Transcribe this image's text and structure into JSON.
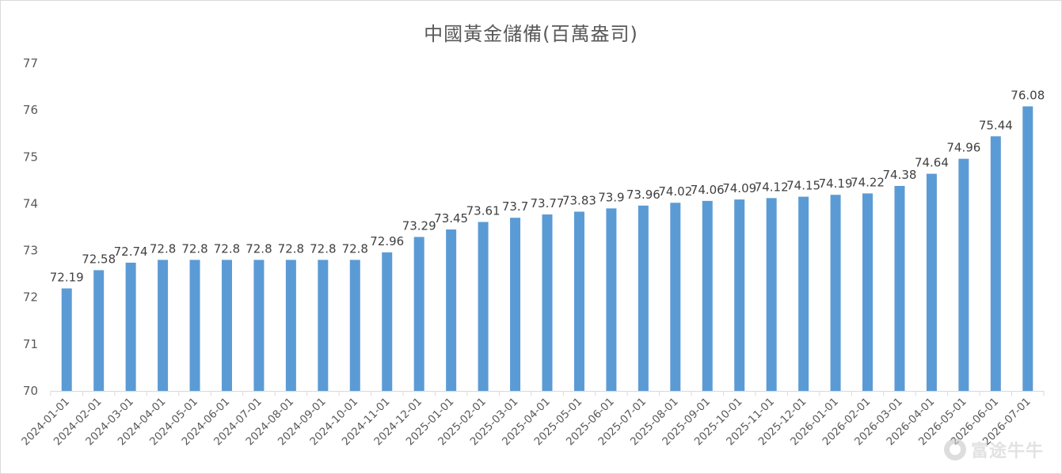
{
  "chart_data": {
    "type": "bar",
    "title": "中國黃金儲備(百萬盎司)",
    "xlabel": "",
    "ylabel": "",
    "ylim": [
      70,
      77
    ],
    "yticks": [
      70,
      71,
      72,
      73,
      74,
      75,
      76,
      77
    ],
    "grid": false,
    "legend": "none",
    "bar_color": "#5b9bd5",
    "categories": [
      "2024-01-01",
      "2024-02-01",
      "2024-03-01",
      "2024-04-01",
      "2024-05-01",
      "2024-06-01",
      "2024-07-01",
      "2024-08-01",
      "2024-09-01",
      "2024-10-01",
      "2024-11-01",
      "2024-12-01",
      "2025-01-01",
      "2025-02-01",
      "2025-03-01",
      "2025-04-01",
      "2025-05-01",
      "2025-06-01",
      "2025-07-01",
      "2025-08-01",
      "2025-09-01",
      "2025-10-01",
      "2025-11-01",
      "2025-12-01",
      "2026-01-01",
      "2026-02-01",
      "2026-03-01",
      "2026-04-01",
      "2026-05-01",
      "2026-06-01",
      "2026-07-01"
    ],
    "values": [
      72.19,
      72.58,
      72.74,
      72.8,
      72.8,
      72.8,
      72.8,
      72.8,
      72.8,
      72.8,
      72.96,
      73.29,
      73.45,
      73.61,
      73.7,
      73.77,
      73.83,
      73.9,
      73.96,
      74.02,
      74.06,
      74.09,
      74.12,
      74.15,
      74.19,
      74.22,
      74.38,
      74.64,
      74.96,
      75.44,
      76.08
    ]
  },
  "watermark": {
    "text": "富途牛牛",
    "icon": "futu-logo-icon"
  }
}
